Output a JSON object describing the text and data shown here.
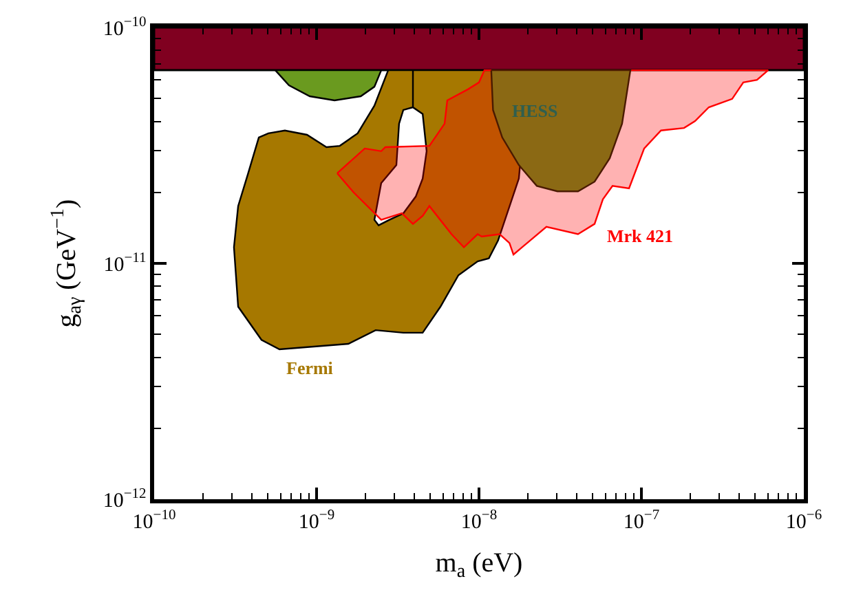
{
  "chart_data": {
    "type": "area",
    "xlabel": "m$_{a}$ (eV)",
    "ylabel": "g$_{aγ}$ (GeV$^{−1}$)",
    "log": "xy",
    "grid": false,
    "xlim": [
      1e-10,
      1e-06
    ],
    "ylim": [
      1e-12,
      1e-10
    ],
    "xticks": [
      {
        "value": 1e-10,
        "label": "10$^{−10}$"
      },
      {
        "value": 2e-10,
        "label": null
      },
      {
        "value": 3e-10,
        "label": null
      },
      {
        "value": 4e-10,
        "label": null
      },
      {
        "value": 5e-10,
        "label": null
      },
      {
        "value": 6e-10,
        "label": null
      },
      {
        "value": 7e-10,
        "label": null
      },
      {
        "value": 8e-10,
        "label": null
      },
      {
        "value": 9e-10,
        "label": null
      },
      {
        "value": 1e-09,
        "label": "10$^{−9}$"
      },
      {
        "value": 2e-09,
        "label": null
      },
      {
        "value": 3e-09,
        "label": null
      },
      {
        "value": 4e-09,
        "label": null
      },
      {
        "value": 5e-09,
        "label": null
      },
      {
        "value": 6e-09,
        "label": null
      },
      {
        "value": 7e-09,
        "label": null
      },
      {
        "value": 8e-09,
        "label": null
      },
      {
        "value": 9e-09,
        "label": null
      },
      {
        "value": 1e-08,
        "label": "10$^{−8}$"
      },
      {
        "value": 2e-08,
        "label": null
      },
      {
        "value": 3e-08,
        "label": null
      },
      {
        "value": 4e-08,
        "label": null
      },
      {
        "value": 5e-08,
        "label": null
      },
      {
        "value": 6e-08,
        "label": null
      },
      {
        "value": 7e-08,
        "label": null
      },
      {
        "value": 8e-08,
        "label": null
      },
      {
        "value": 9e-08,
        "label": null
      },
      {
        "value": 1e-07,
        "label": "10$^{−7}$"
      },
      {
        "value": 2e-07,
        "label": null
      },
      {
        "value": 3e-07,
        "label": null
      },
      {
        "value": 4e-07,
        "label": null
      },
      {
        "value": 5e-07,
        "label": null
      },
      {
        "value": 6e-07,
        "label": null
      },
      {
        "value": 7e-07,
        "label": null
      },
      {
        "value": 8e-07,
        "label": null
      },
      {
        "value": 9e-07,
        "label": null
      },
      {
        "value": 1e-06,
        "label": "10$^{−6}$"
      }
    ],
    "yticks": [
      {
        "value": 1e-12,
        "label": "10$^{−12}$"
      },
      {
        "value": 2e-12,
        "label": null
      },
      {
        "value": 3e-12,
        "label": null
      },
      {
        "value": 4e-12,
        "label": null
      },
      {
        "value": 5e-12,
        "label": null
      },
      {
        "value": 6e-12,
        "label": null
      },
      {
        "value": 7e-12,
        "label": null
      },
      {
        "value": 8e-12,
        "label": null
      },
      {
        "value": 9e-12,
        "label": null
      },
      {
        "value": 1e-11,
        "label": "10$^{−11}$"
      },
      {
        "value": 2e-11,
        "label": null
      },
      {
        "value": 3e-11,
        "label": null
      },
      {
        "value": 4e-11,
        "label": null
      },
      {
        "value": 5e-11,
        "label": null
      },
      {
        "value": 6e-11,
        "label": null
      },
      {
        "value": 7e-11,
        "label": null
      },
      {
        "value": 8e-11,
        "label": null
      },
      {
        "value": 9e-11,
        "label": null
      },
      {
        "value": 1e-10,
        "label": "10$^{−10}$"
      }
    ],
    "series": [
      {
        "color": "#a67800",
        "x": [
          2.76e-09,
          3.92e-09,
          3.92e-09,
          3.42e-09,
          3.22e-09,
          3.1e-09,
          2.5e-09,
          2.27e-09,
          2.41e-09,
          2.81e-09,
          3.42e-09,
          4.08e-09,
          4.5e-09,
          4.76e-09,
          4.5e-09,
          3.92e-09,
          3.92e-09,
          1.87e-08,
          1.79e-08,
          1.76e-08,
          1.31e-08,
          1.15e-08,
          9.81e-09,
          7.47e-09,
          5.79e-09,
          4.5e-09,
          3.42e-09,
          2.31e-09,
          1.57e-09,
          5.91e-10,
          4.58e-10,
          3.29e-10,
          3.1e-10,
          3.29e-10,
          3.77e-10,
          4.41e-10,
          5.05e-10,
          6.38e-10,
          8.73e-10,
          1.15e-09,
          1.39e-09,
          1.79e-09,
          2.27e-09,
          2.76e-09
        ],
        "values": [
          6.59e-11,
          6.59e-11,
          4.59e-11,
          4.47e-11,
          3.91e-11,
          2.61e-11,
          2.19e-11,
          1.53e-11,
          1.45e-11,
          1.53e-11,
          1.63e-11,
          1.92e-11,
          2.29e-11,
          2.99e-11,
          4.3e-11,
          4.59e-11,
          6.59e-11,
          6.59e-11,
          2.61e-11,
          2.29e-11,
          1.25e-11,
          1.05e-11,
          1.02e-11,
          8.91e-12,
          6.55e-12,
          5.08e-12,
          5.08e-12,
          5.21e-12,
          4.56e-12,
          4.32e-12,
          4.74e-12,
          6.55e-12,
          1.17e-11,
          1.75e-11,
          2.38e-11,
          3.42e-11,
          3.56e-11,
          3.66e-11,
          3.51e-11,
          3.11e-11,
          3.15e-11,
          3.56e-11,
          4.66e-11,
          6.59e-11
        ]
      },
      {
        "color": "#ff0000",
        "x": [
          1.34e-09,
          1.98e-09,
          2.5e-09,
          2.65e-09,
          4.95e-09,
          6.14e-09,
          6.38e-09,
          8.55e-09,
          1e-08,
          1.08e-08,
          6.03e-07,
          5.15e-07,
          4.24e-07,
          3.62e-07,
          2.6e-07,
          2.14e-07,
          1.83e-07,
          1.32e-07,
          1.04e-07,
          8.39e-08,
          6.64e-08,
          5.79e-08,
          5.15e-08,
          4.07e-08,
          2.6e-08,
          1.63e-08,
          1.54e-08,
          1.34e-08,
          1.04e-08,
          9.81e-09,
          8.07e-09,
          6.77e-09,
          4.95e-09,
          4.5e-09,
          3.92e-09,
          3.35e-09,
          2.5e-09,
          1.69e-09,
          1.34e-09
        ],
        "values": [
          2.41e-11,
          3.07e-11,
          2.99e-11,
          3.11e-11,
          3.15e-11,
          3.91e-11,
          4.91e-11,
          5.47e-11,
          5.85e-11,
          6.59e-11,
          6.59e-11,
          6e-11,
          5.85e-11,
          4.98e-11,
          4.59e-11,
          4.01e-11,
          3.75e-11,
          3.66e-11,
          3.07e-11,
          2.08e-11,
          2.13e-11,
          1.87e-11,
          1.47e-11,
          1.33e-11,
          1.43e-11,
          1.09e-11,
          1.22e-11,
          1.33e-11,
          1.3e-11,
          1.33e-11,
          1.17e-11,
          1.33e-11,
          1.75e-11,
          1.59e-11,
          1.47e-11,
          1.63e-11,
          1.53e-11,
          2e-11,
          2.41e-11
        ]
      },
      {
        "color": "#8b6914",
        "x": [
          1.19e-08,
          1.22e-08,
          1.39e-08,
          1.76e-08,
          2.27e-08,
          3.04e-08,
          4.07e-08,
          5.15e-08,
          6.38e-08,
          7.6e-08,
          8.55e-08,
          1.19e-08
        ],
        "values": [
          6.59e-11,
          4.47e-11,
          3.42e-11,
          2.61e-11,
          2.13e-11,
          2.02e-11,
          2.02e-11,
          2.22e-11,
          2.79e-11,
          3.91e-11,
          6.59e-11,
          6.59e-11
        ]
      },
      {
        "color": "#6a9a1f",
        "x": [
          5.57e-10,
          6.76e-10,
          9.08e-10,
          1.29e-09,
          1.87e-09,
          2.27e-09,
          2.5e-09,
          5.57e-10
        ],
        "values": [
          6.59e-11,
          5.69e-11,
          5.11e-11,
          4.91e-11,
          5.11e-11,
          5.61e-11,
          6.59e-11,
          6.59e-11
        ]
      }
    ],
    "bands": [
      {
        "axis": "y",
        "from": 6.59e-11,
        "to": 1e-10,
        "color": "#800020"
      }
    ],
    "annotations": [
      "Fermi",
      "Mrk 421",
      "HESS"
    ]
  }
}
